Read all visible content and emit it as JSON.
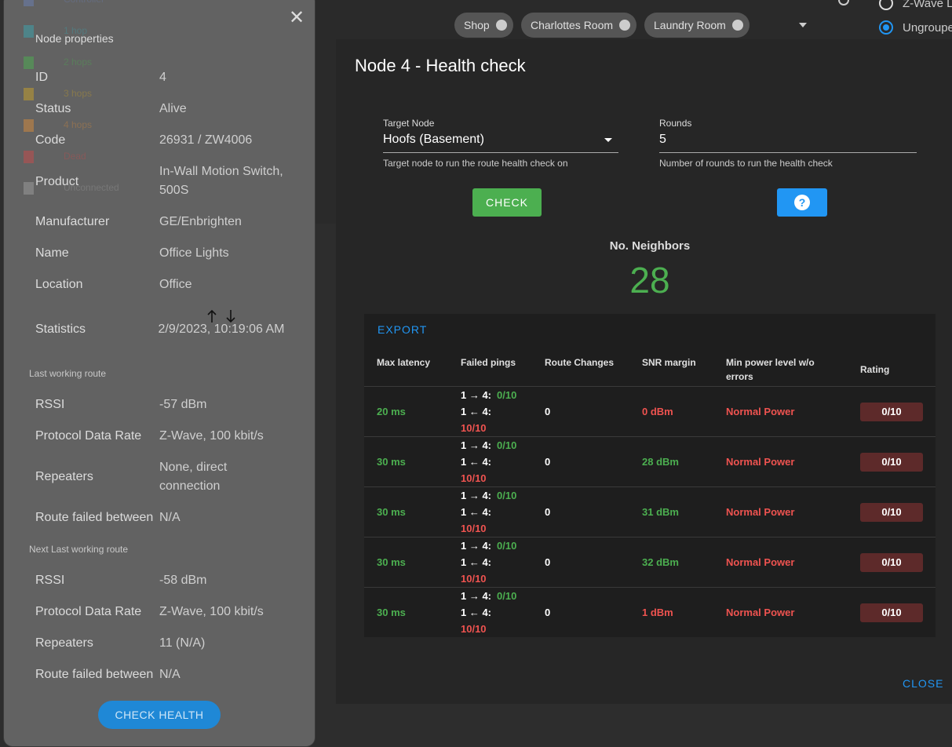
{
  "top_bar": {
    "chips": [
      "Shop",
      "Charlottes Room",
      "Laundry Room"
    ],
    "options": [
      "Z-Wave L",
      "Ungroupe"
    ]
  },
  "legend": [
    {
      "label": "Controller",
      "color": "#6a7fb5"
    },
    {
      "label": "1 hop",
      "color": "#3aa6b0"
    },
    {
      "label": "2 hops",
      "color": "#4caf50"
    },
    {
      "label": "3 hops",
      "color": "#c9a227"
    },
    {
      "label": "4 hops",
      "color": "#d98b3a"
    },
    {
      "label": "Dead",
      "color": "#c94a4a"
    },
    {
      "label": "Unconnected",
      "color": "#9e9e9e"
    }
  ],
  "node_panel": {
    "title": "Node properties",
    "properties": [
      {
        "label": "ID",
        "value": "4"
      },
      {
        "label": "Status",
        "value": "Alive"
      },
      {
        "label": "Code",
        "value": "26931 / ZW4006"
      },
      {
        "label": "Product",
        "value": "In-Wall Motion Switch, 500S"
      },
      {
        "label": "Manufacturer",
        "value": "GE/Enbrighten"
      },
      {
        "label": "Name",
        "value": "Office Lights"
      },
      {
        "label": "Location",
        "value": "Office"
      },
      {
        "label": "Statistics",
        "value": "2/9/2023, 10:19:06 AM"
      }
    ],
    "routes": [
      {
        "title": "Last working route",
        "fields": [
          {
            "label": "RSSI",
            "value": "-57 dBm"
          },
          {
            "label": "Protocol Data Rate",
            "value": "Z-Wave, 100 kbit/s"
          },
          {
            "label": "Repeaters",
            "value": "None, direct connection"
          },
          {
            "label": "Route failed between",
            "value": "N/A"
          }
        ]
      },
      {
        "title": "Next Last working route",
        "fields": [
          {
            "label": "RSSI",
            "value": "-58 dBm"
          },
          {
            "label": "Protocol Data Rate",
            "value": "Z-Wave, 100 kbit/s"
          },
          {
            "label": "Repeaters",
            "value": "11 (N/A)"
          },
          {
            "label": "Route failed between",
            "value": "N/A"
          }
        ]
      }
    ],
    "button": "CHECK HEALTH"
  },
  "dialog": {
    "title": "Node 4 - Health check",
    "target": {
      "label": "Target Node",
      "value": "Hoofs (Basement)",
      "hint": "Target node to run the route health check on"
    },
    "rounds": {
      "label": "Rounds",
      "value": "5",
      "hint": "Number of rounds to run the health check"
    },
    "check_button": "CHECK",
    "help_button": "?",
    "neighbors": {
      "label": "No. Neighbors",
      "value": "28"
    },
    "export": "EXPORT",
    "table": {
      "headers": [
        "Max latency",
        "Failed pings",
        "Route Changes",
        "SNR margin",
        "Min power level w/o errors",
        "Rating"
      ],
      "rows": [
        {
          "latency": "20 ms",
          "ping_out": "1 → 4:",
          "ping_out_value": "0/10",
          "ping_in": "1 ← 4:",
          "ping_in_value": "10/10",
          "route_changes": "0",
          "snr": "0 dBm",
          "snr_color": "#ef5350",
          "power": "Normal Power",
          "rating": "0/10"
        },
        {
          "latency": "30 ms",
          "ping_out": "1 → 4:",
          "ping_out_value": "0/10",
          "ping_in": "1 ← 4:",
          "ping_in_value": "10/10",
          "route_changes": "0",
          "snr": "28 dBm",
          "snr_color": "#4caf50",
          "power": "Normal Power",
          "rating": "0/10"
        },
        {
          "latency": "30 ms",
          "ping_out": "1 → 4:",
          "ping_out_value": "0/10",
          "ping_in": "1 ← 4:",
          "ping_in_value": "10/10",
          "route_changes": "0",
          "snr": "31 dBm",
          "snr_color": "#4caf50",
          "power": "Normal Power",
          "rating": "0/10"
        },
        {
          "latency": "30 ms",
          "ping_out": "1 → 4:",
          "ping_out_value": "0/10",
          "ping_in": "1 ← 4:",
          "ping_in_value": "10/10",
          "route_changes": "0",
          "snr": "32 dBm",
          "snr_color": "#4caf50",
          "power": "Normal Power",
          "rating": "0/10"
        },
        {
          "latency": "30 ms",
          "ping_out": "1 → 4:",
          "ping_out_value": "0/10",
          "ping_in": "1 ← 4:",
          "ping_in_value": "10/10",
          "route_changes": "0",
          "snr": "1 dBm",
          "snr_color": "#ef5350",
          "power": "Normal Power",
          "rating": "0/10"
        }
      ]
    },
    "close": "CLOSE"
  }
}
